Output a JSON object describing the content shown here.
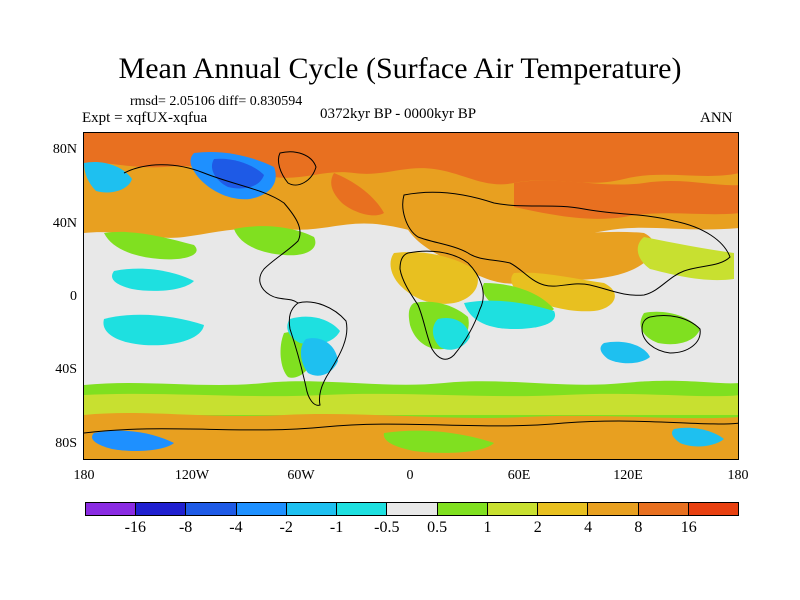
{
  "title": "Mean Annual Cycle (Surface Air Temperature)",
  "stats_line": "rmsd= 2.05106 diff= 0.830594",
  "experiment_line": "Expt = xqfUX-xqfua",
  "period_line": "0372kyr BP - 0000kyr BP",
  "season_label": "ANN",
  "lat_labels": [
    "80N",
    "40N",
    "0",
    "40S",
    "80S"
  ],
  "lon_labels": [
    "180",
    "120W",
    "60W",
    "0",
    "60E",
    "120E",
    "180"
  ],
  "colorbar": {
    "colors": [
      "#8a2be2",
      "#2020d0",
      "#1e5ae6",
      "#1e90ff",
      "#1ec0f0",
      "#1ee0e0",
      "#e8e8e8",
      "#80e020",
      "#c8e030",
      "#e8c020",
      "#e8a020",
      "#e87020",
      "#e84010"
    ],
    "labels": [
      "-16",
      "-8",
      "-4",
      "-2",
      "-1",
      "-0.5",
      "0.5",
      "1",
      "2",
      "4",
      "8",
      "16"
    ]
  },
  "map_colors": {
    "neutral": "#e8e8e8",
    "green": "#80e020",
    "yellowgreen": "#c8e030",
    "yellow": "#e8c020",
    "orange": "#e8a020",
    "darkorange": "#e87020",
    "cyan": "#1ee0e0",
    "lightblue": "#1ec0f0",
    "blue": "#1e90ff",
    "darkblue": "#1e5ae6"
  }
}
